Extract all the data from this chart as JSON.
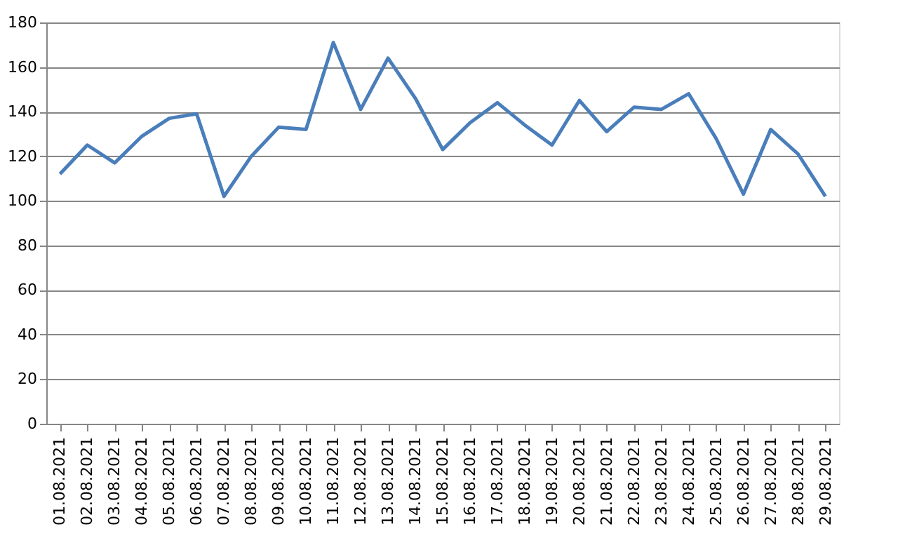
{
  "chart_data": {
    "type": "line",
    "categories": [
      "01.08.2021",
      "02.08.2021",
      "03.08.2021",
      "04.08.2021",
      "05.08.2021",
      "06.08.2021",
      "07.08.2021",
      "08.08.2021",
      "09.08.2021",
      "10.08.2021",
      "11.08.2021",
      "12.08.2021",
      "13.08.2021",
      "14.08.2021",
      "15.08.2021",
      "16.08.2021",
      "17.08.2021",
      "18.08.2021",
      "19.08.2021",
      "20.08.2021",
      "21.08.2021",
      "22.08.2021",
      "23.08.2021",
      "24.08.2021",
      "25.08.2021",
      "26.08.2021",
      "27.08.2021",
      "28.08.2021",
      "29.08.2021"
    ],
    "series": [
      {
        "color": "#4a7ebb",
        "values": [
          112,
          125,
          117,
          129,
          137,
          139,
          102,
          120,
          133,
          132,
          171,
          141,
          164,
          146,
          123,
          135,
          144,
          134,
          125,
          145,
          131,
          142,
          141,
          148,
          128,
          103,
          132,
          121,
          102
        ]
      }
    ],
    "ylim": [
      0,
      180
    ],
    "yticks": [
      0,
      20,
      40,
      60,
      80,
      100,
      120,
      140,
      160,
      180
    ],
    "grid": "y",
    "marker": "none",
    "line_style": "solid"
  }
}
